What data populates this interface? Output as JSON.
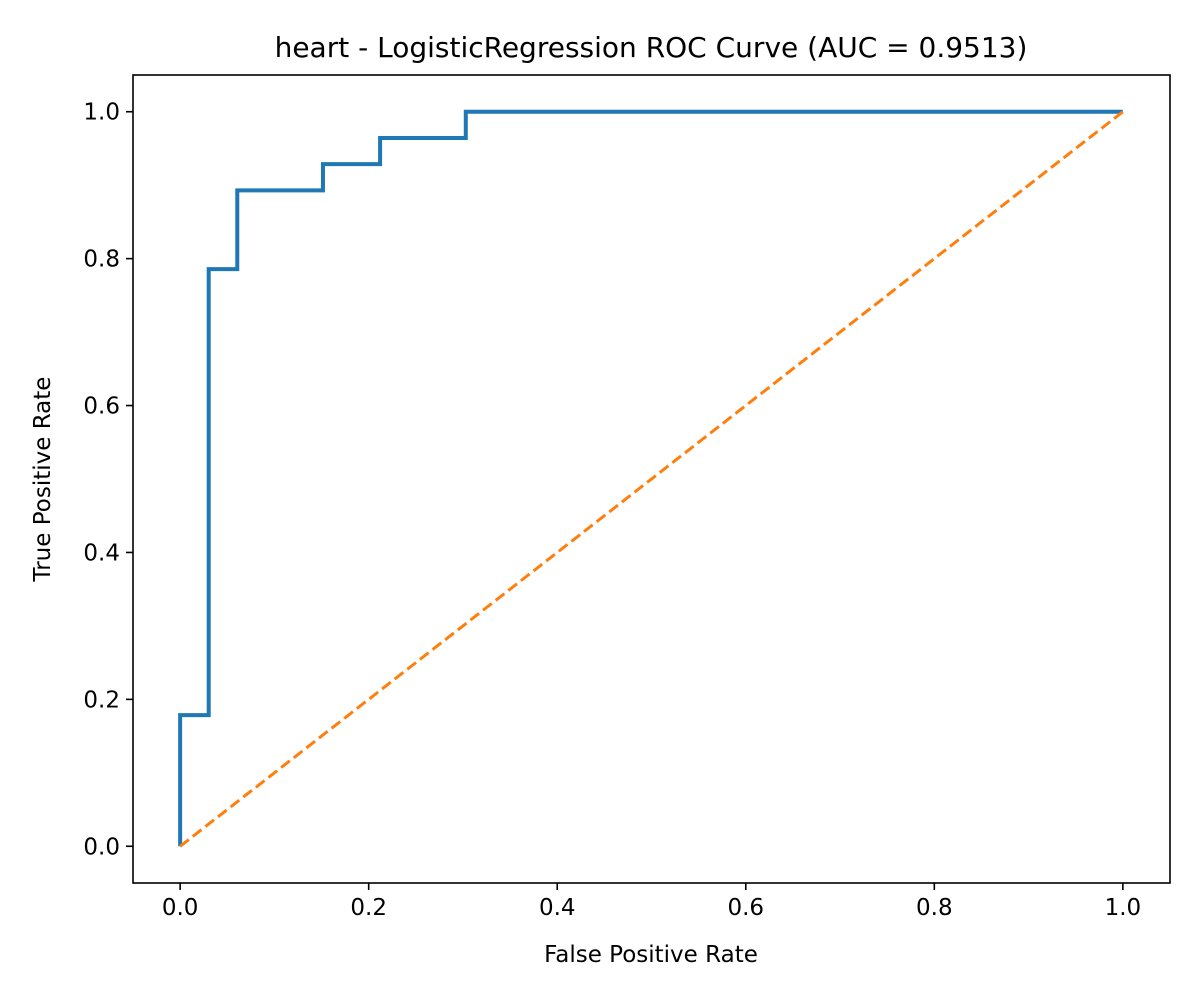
{
  "chart_data": {
    "type": "line",
    "title": "heart - LogisticRegression ROC Curve (AUC = 0.9513)",
    "xlabel": "False Positive Rate",
    "ylabel": "True Positive Rate",
    "xlim": [
      -0.05,
      1.05
    ],
    "ylim": [
      -0.05,
      1.05
    ],
    "xticks": [
      0.0,
      0.2,
      0.4,
      0.6,
      0.8,
      1.0
    ],
    "yticks": [
      0.0,
      0.2,
      0.4,
      0.6,
      0.8,
      1.0
    ],
    "xtick_labels": [
      "0.0",
      "0.2",
      "0.4",
      "0.6",
      "0.8",
      "1.0"
    ],
    "ytick_labels": [
      "0.0",
      "0.2",
      "0.4",
      "0.6",
      "0.8",
      "1.0"
    ],
    "grid": false,
    "series": [
      {
        "style": "solid",
        "color": "#1f77b4",
        "x": [
          0.0,
          0.0,
          0.0303,
          0.0303,
          0.0606,
          0.0606,
          0.1515,
          0.1515,
          0.2121,
          0.2121,
          0.303,
          0.303,
          1.0
        ],
        "y": [
          0.0,
          0.1786,
          0.1786,
          0.7857,
          0.7857,
          0.8929,
          0.8929,
          0.9286,
          0.9286,
          0.9643,
          0.9643,
          1.0,
          1.0
        ]
      },
      {
        "style": "dashed",
        "color": "#ff7f0e",
        "x": [
          0.0,
          1.0
        ],
        "y": [
          0.0,
          1.0
        ]
      }
    ]
  }
}
